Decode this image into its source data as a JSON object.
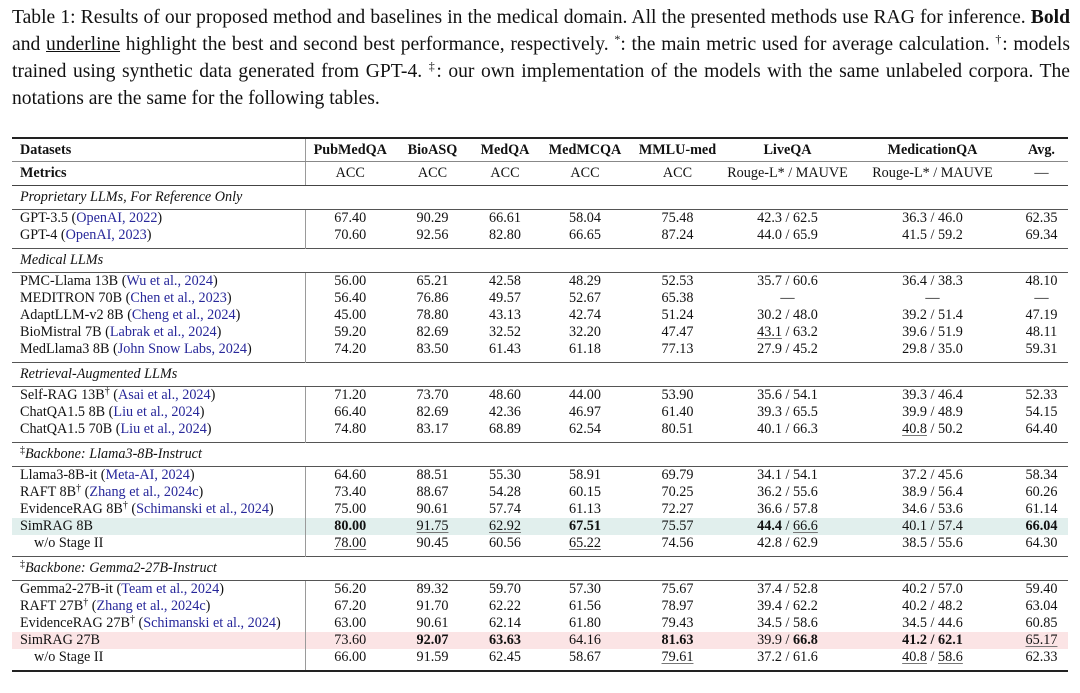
{
  "caption": [
    {
      "t": "Table 1: Results of our proposed method and baselines in the medical domain. All the presented methods use RAG for inference. "
    },
    {
      "t": "Bold",
      "b": true
    },
    {
      "t": " and "
    },
    {
      "t": "underline",
      "u": true
    },
    {
      "t": " highlight the best and second best performance, respectively. "
    },
    {
      "t": "*",
      "sup": true
    },
    {
      "t": ": the main metric used for average calculation. "
    },
    {
      "t": "†",
      "sup": true
    },
    {
      "t": ": models trained using synthetic data generated from GPT-4. "
    },
    {
      "t": "‡",
      "sup": true
    },
    {
      "t": ": our own implementation of the models with the same unlabeled corpora. The notations are the same for the following tables."
    }
  ],
  "header": {
    "datasets_label": "Datasets",
    "metrics_label": "Metrics",
    "columns": [
      "PubMedQA",
      "BioASQ",
      "MedQA",
      "MedMCQA",
      "MMLU-med",
      "LiveQA",
      "MedicationQA",
      "Avg."
    ],
    "metrics": [
      "ACC",
      "ACC",
      "ACC",
      "ACC",
      "ACC",
      "Rouge-L* / MAUVE",
      "Rouge-L* / MAUVE",
      "—"
    ]
  },
  "colors": {
    "highlight_teal": "#e1efed",
    "highlight_pink": "#fbe4e5",
    "citation": "#27279a"
  },
  "groups": [
    {
      "title": "Proprietary LLMs, For Reference Only",
      "rows": [
        {
          "model": "GPT-3.5",
          "cite": "OpenAI, 2022",
          "cells": [
            "67.40",
            "90.29",
            "66.61",
            "58.04",
            "75.48",
            "42.3 / 62.5",
            "36.3 / 46.0",
            "62.35"
          ]
        },
        {
          "model": "GPT-4",
          "cite": "OpenAI, 2023",
          "cells": [
            "70.60",
            "92.56",
            "82.80",
            "66.65",
            "87.24",
            "44.0 / 65.9",
            "41.5 / 59.2",
            "69.34"
          ]
        }
      ]
    },
    {
      "title": "Medical LLMs",
      "rows": [
        {
          "model": "PMC-Llama 13B",
          "cite": "Wu et al., 2024",
          "cells": [
            "56.00",
            "65.21",
            "42.58",
            "48.29",
            "52.53",
            "35.7 / 60.6",
            "36.4 / 38.3",
            "48.10"
          ]
        },
        {
          "model": "MEDITRON 70B",
          "cite": "Chen et al., 2023",
          "cells": [
            "56.40",
            "76.86",
            "49.57",
            "52.67",
            "65.38",
            "—",
            "—",
            "—"
          ]
        },
        {
          "model": "AdaptLLM-v2 8B",
          "cite": "Cheng et al., 2024",
          "cells": [
            "45.00",
            "78.80",
            "43.13",
            "42.74",
            "51.24",
            "30.2 / 48.0",
            "39.2 / 51.4",
            "47.19"
          ]
        },
        {
          "model": "BioMistral 7B",
          "cite": "Labrak et al., 2024",
          "cells": [
            "59.20",
            "82.69",
            "32.52",
            "32.20",
            "47.47",
            [
              {
                "t": "43.1",
                "u": true
              },
              {
                "t": " / 63.2"
              }
            ],
            "39.6 / 51.9",
            "48.11"
          ]
        },
        {
          "model": "MedLlama3 8B",
          "cite": "John Snow Labs, 2024",
          "cells": [
            "74.20",
            "83.50",
            "61.43",
            "61.18",
            "77.13",
            "27.9 / 45.2",
            "29.8 / 35.0",
            "59.31"
          ]
        }
      ]
    },
    {
      "title": "Retrieval-Augmented LLMs",
      "rows": [
        {
          "model": "Self-RAG 13B",
          "sup": "†",
          "cite": "Asai et al., 2024",
          "cells": [
            "71.20",
            "73.70",
            "48.60",
            "44.00",
            "53.90",
            "35.6 / 54.1",
            "39.3 / 46.4",
            "52.33"
          ]
        },
        {
          "model": "ChatQA1.5 8B",
          "cite": "Liu et al., 2024",
          "cells": [
            "66.40",
            "82.69",
            "42.36",
            "46.97",
            "61.40",
            "39.3 / 65.5",
            "39.9 / 48.9",
            "54.15"
          ]
        },
        {
          "model": "ChatQA1.5 70B",
          "cite": "Liu et al., 2024",
          "cells": [
            "74.80",
            "83.17",
            "68.89",
            "62.54",
            "80.51",
            "40.1 / 66.3",
            [
              {
                "t": "40.8",
                "u": true
              },
              {
                "t": " / 50.2"
              }
            ],
            "64.40"
          ]
        }
      ]
    },
    {
      "title": "Backbone: Llama3-8B-Instruct",
      "title_sup": "‡",
      "rows": [
        {
          "model": "Llama3-8B-it",
          "cite": "Meta-AI, 2024",
          "cells": [
            "64.60",
            "88.51",
            "55.30",
            "58.91",
            "69.79",
            "34.1 / 54.1",
            "37.2 / 45.6",
            "58.34"
          ]
        },
        {
          "model": "RAFT 8B",
          "sup": "†",
          "cite": "Zhang et al., 2024c",
          "cells": [
            "73.40",
            "88.67",
            "54.28",
            "60.15",
            "70.25",
            "36.2 / 55.6",
            "38.9 / 56.4",
            "60.26"
          ]
        },
        {
          "model": "EvidenceRAG 8B",
          "sup": "†",
          "cite": "Schimanski et al., 2024",
          "cells": [
            "75.00",
            "90.61",
            "57.74",
            "61.13",
            "72.27",
            "36.6 / 57.8",
            "34.6 / 53.6",
            "61.14"
          ]
        },
        {
          "model": "SimRAG 8B",
          "highlight": "teal",
          "cells": [
            [
              {
                "t": "80.00",
                "b": true
              }
            ],
            [
              {
                "t": "91.75",
                "u": true
              }
            ],
            [
              {
                "t": "62.92",
                "u": true
              }
            ],
            [
              {
                "t": "67.51",
                "b": true
              }
            ],
            "75.57",
            [
              {
                "t": "44.4",
                "b": true
              },
              {
                "t": " / "
              },
              {
                "t": "66.6",
                "u": true
              }
            ],
            "40.1 / 57.4",
            [
              {
                "t": "66.04",
                "b": true
              }
            ]
          ]
        },
        {
          "model": "w/o Stage II",
          "indent": true,
          "cells": [
            [
              {
                "t": "78.00",
                "u": true
              }
            ],
            "90.45",
            "60.56",
            [
              {
                "t": "65.22",
                "u": true
              }
            ],
            "74.56",
            "42.8 / 62.9",
            "38.5 / 55.6",
            "64.30"
          ]
        }
      ]
    },
    {
      "title": "Backbone: Gemma2-27B-Instruct",
      "title_sup": "‡",
      "rows": [
        {
          "model": "Gemma2-27B-it",
          "cite": "Team et al., 2024",
          "cells": [
            "56.20",
            "89.32",
            "59.70",
            "57.30",
            "75.67",
            "37.4 / 52.8",
            "40.2 / 57.0",
            "59.40"
          ]
        },
        {
          "model": "RAFT 27B",
          "sup": "†",
          "cite": "Zhang et al., 2024c",
          "cells": [
            "67.20",
            "91.70",
            "62.22",
            "61.56",
            "78.97",
            "39.4 / 62.2",
            "40.2 / 48.2",
            "63.04"
          ]
        },
        {
          "model": "EvidenceRAG 27B",
          "sup": "†",
          "cite": "Schimanski et al., 2024",
          "cells": [
            "63.00",
            "90.61",
            "62.14",
            "61.80",
            "79.43",
            "34.5 / 58.6",
            "34.5 / 44.6",
            "60.85"
          ]
        },
        {
          "model": "SimRAG 27B",
          "highlight": "pink",
          "cells": [
            "73.60",
            [
              {
                "t": "92.07",
                "b": true
              }
            ],
            [
              {
                "t": "63.63",
                "b": true
              }
            ],
            "64.16",
            [
              {
                "t": "81.63",
                "b": true
              }
            ],
            [
              {
                "t": "39.9 / "
              },
              {
                "t": "66.8",
                "b": true
              }
            ],
            [
              {
                "t": "41.2 / 62.1",
                "b": true
              }
            ],
            [
              {
                "t": "65.17",
                "u": true
              }
            ]
          ]
        },
        {
          "model": "w/o Stage II",
          "indent": true,
          "cells": [
            "66.00",
            "91.59",
            "62.45",
            "58.67",
            [
              {
                "t": "79.61",
                "u": true
              }
            ],
            "37.2 / 61.6",
            [
              {
                "t": "40.8",
                "u": true
              },
              {
                "t": " / "
              },
              {
                "t": "58.6",
                "u": true
              }
            ],
            "62.33"
          ]
        }
      ]
    }
  ]
}
